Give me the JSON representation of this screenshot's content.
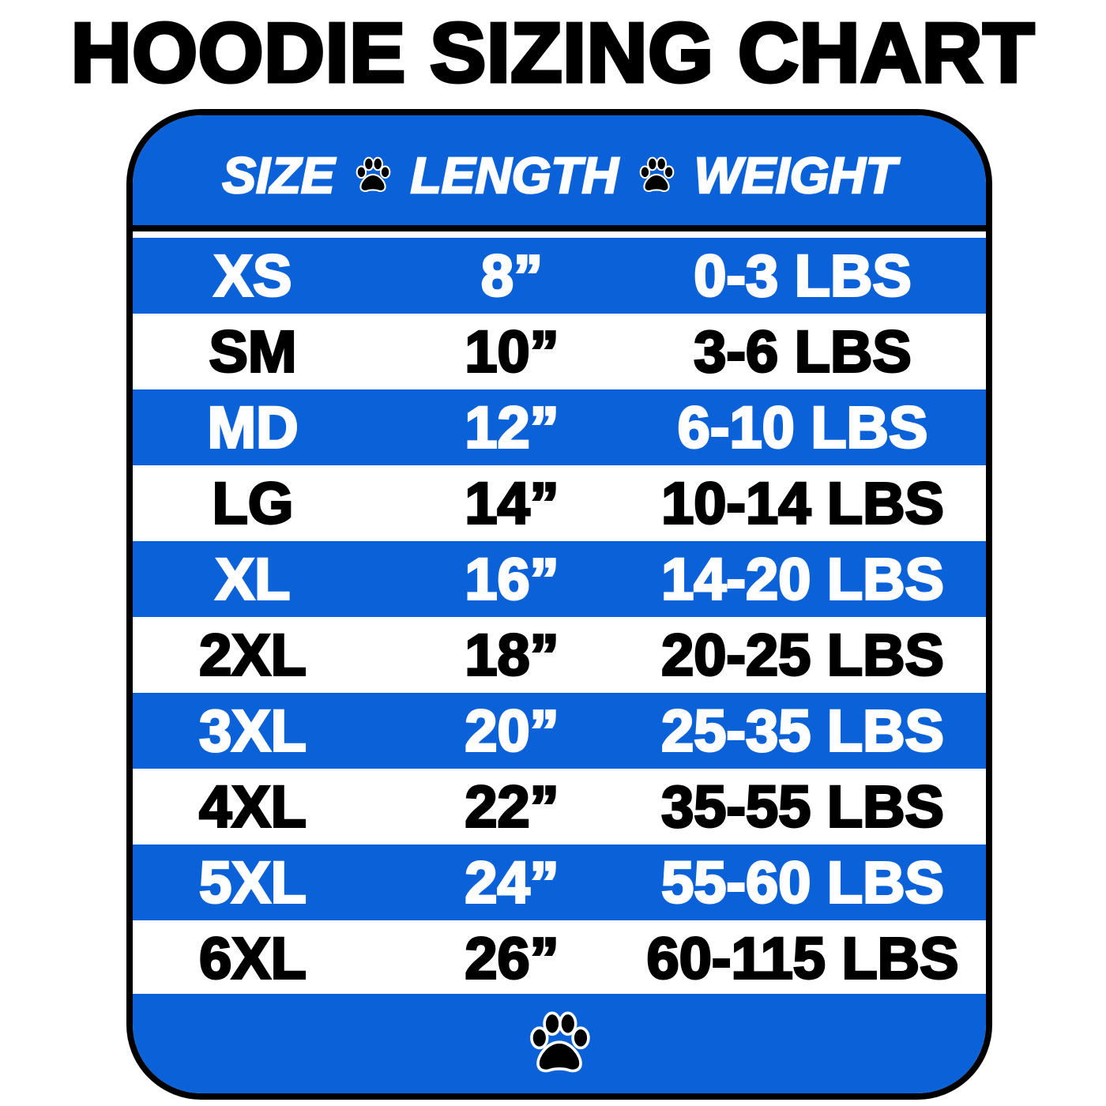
{
  "title": "HOODIE SIZING CHART",
  "headers": {
    "size": "SIZE",
    "length": "LENGTH",
    "weight": "WEIGHT"
  },
  "colors": {
    "blue": "#0b62d8",
    "border": "#000000"
  },
  "icons": [
    "paw-icon"
  ],
  "rows": [
    {
      "size": "XS",
      "length": "8”",
      "weight": "0-3 LBS"
    },
    {
      "size": "SM",
      "length": "10”",
      "weight": "3-6 LBS"
    },
    {
      "size": "MD",
      "length": "12”",
      "weight": "6-10 LBS"
    },
    {
      "size": "LG",
      "length": "14”",
      "weight": "10-14 LBS"
    },
    {
      "size": "XL",
      "length": "16”",
      "weight": "14-20 LBS"
    },
    {
      "size": "2XL",
      "length": "18”",
      "weight": "20-25 LBS"
    },
    {
      "size": "3XL",
      "length": "20”",
      "weight": "25-35 LBS"
    },
    {
      "size": "4XL",
      "length": "22”",
      "weight": "35-55 LBS"
    },
    {
      "size": "5XL",
      "length": "24”",
      "weight": "55-60 LBS"
    },
    {
      "size": "6XL",
      "length": "26”",
      "weight": "60-115 LBS"
    }
  ]
}
